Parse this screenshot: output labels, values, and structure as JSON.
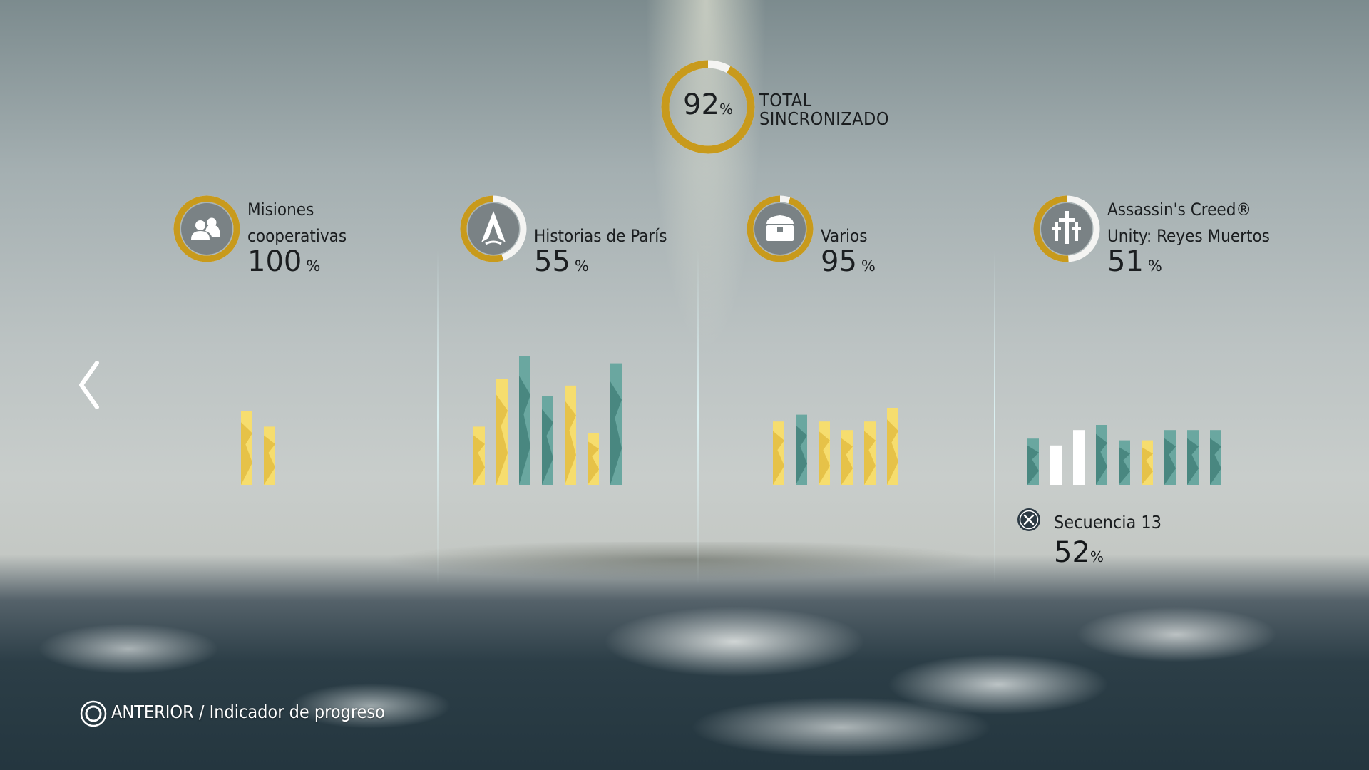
{
  "colors": {
    "gold": "#c89a1c",
    "white": "#f4f4f2",
    "teal": "#4f9088",
    "yellow": "#f1cf52"
  },
  "total": {
    "percent": "92",
    "percent_value": 92,
    "percent_symbol": "%",
    "label_line1": "TOTAL",
    "label_line2": "SINCRONIZADO"
  },
  "categories": [
    {
      "name_line1": "Misiones",
      "name_line2": "cooperativas",
      "percent": "100",
      "percent_value": 100,
      "percent_symbol": "%",
      "icon": "coop-players-icon",
      "bars": [
        {
          "value": 0.43,
          "color": "yellow"
        },
        {
          "value": 0.34,
          "color": "yellow"
        }
      ]
    },
    {
      "name_line1": "Historias de París",
      "percent": "55",
      "percent_value": 55,
      "percent_symbol": "%",
      "icon": "assassin-insignia-icon",
      "bars": [
        {
          "value": 0.34,
          "color": "yellow"
        },
        {
          "value": 0.62,
          "color": "yellow"
        },
        {
          "value": 0.75,
          "color": "teal"
        },
        {
          "value": 0.52,
          "color": "teal"
        },
        {
          "value": 0.58,
          "color": "yellow"
        },
        {
          "value": 0.3,
          "color": "yellow"
        },
        {
          "value": 0.71,
          "color": "teal"
        }
      ]
    },
    {
      "name_line1": "Varios",
      "percent": "95",
      "percent_value": 95,
      "percent_symbol": "%",
      "icon": "treasure-chest-icon",
      "bars": [
        {
          "value": 0.37,
          "color": "yellow"
        },
        {
          "value": 0.41,
          "color": "teal"
        },
        {
          "value": 0.37,
          "color": "yellow"
        },
        {
          "value": 0.32,
          "color": "yellow"
        },
        {
          "value": 0.37,
          "color": "yellow"
        },
        {
          "value": 0.45,
          "color": "yellow"
        }
      ]
    },
    {
      "name_line1": "Assassin's Creed®",
      "name_line2": "Unity: Reyes Muertos",
      "percent": "51",
      "percent_value": 51,
      "percent_symbol": "%",
      "icon": "catacomb-crosses-icon",
      "bars": [
        {
          "value": 0.27,
          "color": "teal"
        },
        {
          "value": 0.23,
          "color": "white"
        },
        {
          "value": 0.32,
          "color": "white"
        },
        {
          "value": 0.35,
          "color": "teal"
        },
        {
          "value": 0.26,
          "color": "teal"
        },
        {
          "value": 0.26,
          "color": "yellow"
        },
        {
          "value": 0.32,
          "color": "teal"
        },
        {
          "value": 0.32,
          "color": "teal"
        },
        {
          "value": 0.32,
          "color": "teal"
        }
      ]
    }
  ],
  "sequence": {
    "icon": "cross-button-icon",
    "name": "Secuencia 13",
    "percent": "52",
    "percent_symbol": "%"
  },
  "nav": {
    "prev_icon": "chevron-left-icon"
  },
  "footer": {
    "icon": "circle-button-icon",
    "text": "ANTERIOR / Indicador de progreso"
  }
}
